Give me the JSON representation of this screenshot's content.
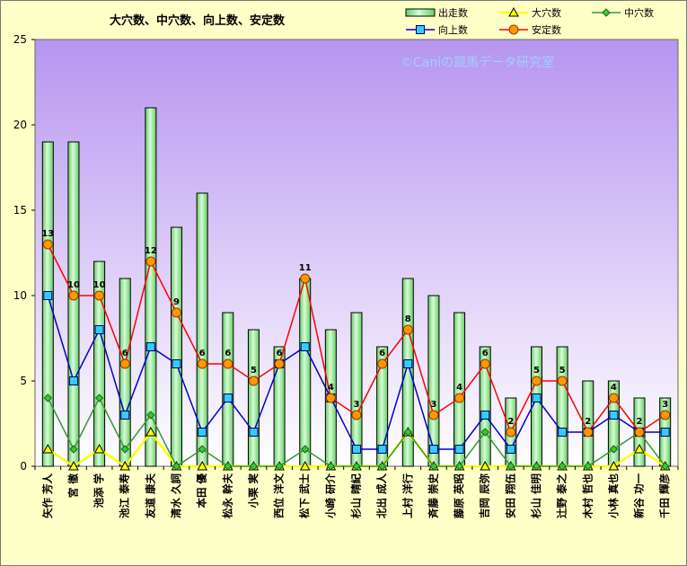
{
  "chart_data": {
    "type": "bar",
    "title": "大穴数、中穴数、向上数、安定数",
    "watermark": "©Caniの競馬データ研究室",
    "ylim": [
      0,
      25
    ],
    "yticks": [
      "0",
      "5",
      "10",
      "15",
      "20",
      "25"
    ],
    "categories": [
      "矢作 芳人",
      "宮 徹",
      "池添 学",
      "池江 泰寿",
      "友道 康夫",
      "清水 久詞",
      "本田 優",
      "松永 幹夫",
      "小栗 実",
      "西位 洋文",
      "松下 武士",
      "小崎 研介",
      "杉山 晴紀",
      "北出 成人",
      "上村 洋行",
      "斉藤 崇史",
      "藤原 英昭",
      "吉岡 辰弥",
      "安田 翔伍",
      "杉山 佳明",
      "辻野 泰之",
      "木村 哲也",
      "小林 真也",
      "新谷 功一",
      "千田 輝彦"
    ],
    "series": [
      {
        "name": "出走数",
        "kind": "bar",
        "color": "#b6f5b6",
        "values": [
          19,
          19,
          12,
          11,
          21,
          14,
          16,
          9,
          8,
          7,
          11,
          8,
          9,
          7,
          11,
          10,
          9,
          7,
          4,
          7,
          7,
          5,
          5,
          4,
          4
        ]
      },
      {
        "name": "大穴数",
        "kind": "line",
        "color": "#ffff00",
        "values": [
          1,
          0,
          1,
          0,
          2,
          0,
          0,
          0,
          0,
          0,
          0,
          0,
          0,
          0,
          2,
          0,
          0,
          0,
          0,
          0,
          0,
          0,
          0,
          1,
          0
        ]
      },
      {
        "name": "中穴数",
        "kind": "line",
        "color": "#339933",
        "values": [
          4,
          1,
          4,
          1,
          3,
          0,
          1,
          0,
          0,
          0,
          1,
          0,
          0,
          0,
          2,
          0,
          0,
          2,
          0,
          0,
          0,
          0,
          1,
          2,
          0
        ]
      },
      {
        "name": "向上数",
        "kind": "line",
        "color": "#0000cc",
        "values": [
          10,
          5,
          8,
          3,
          7,
          6,
          2,
          4,
          2,
          6,
          7,
          4,
          1,
          1,
          6,
          1,
          1,
          3,
          1,
          4,
          2,
          2,
          3,
          2,
          2
        ]
      },
      {
        "name": "安定数",
        "kind": "line",
        "color": "#ff0000",
        "values": [
          13,
          10,
          10,
          6,
          12,
          9,
          6,
          6,
          5,
          6,
          11,
          4,
          3,
          6,
          8,
          3,
          4,
          6,
          2,
          5,
          5,
          2,
          4,
          2,
          3
        ]
      }
    ],
    "data_labels": [
      "13",
      "10",
      "10",
      "6",
      "12",
      "9",
      "6",
      "6",
      "5",
      "6",
      "11",
      "4",
      "3",
      "6",
      "8",
      "3",
      "4",
      "6",
      "2",
      "5",
      "5",
      "2",
      "4",
      "2",
      "3"
    ],
    "legend_position": "top-right",
    "grid": false
  }
}
